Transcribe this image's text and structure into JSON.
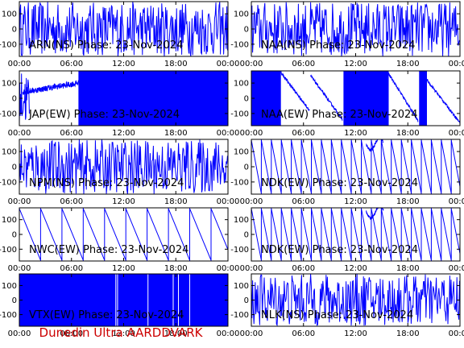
{
  "footer": {
    "text": "Dunedin Ultra AARDDVARK",
    "color": "#cc0000"
  },
  "colors": {
    "trace": "#0000ff",
    "axes": "#000000",
    "background": "#ffffff"
  },
  "chart_data": [
    {
      "type": "line",
      "title": "ARN(NS) Phase: 23-Nov-2024",
      "y_ticks": [
        "100",
        "0",
        "-100"
      ],
      "ylim": [
        -180,
        180
      ],
      "x_ticks": [
        "00:00",
        "06:00",
        "12:00",
        "18:00",
        "00:00"
      ],
      "xlim": [
        0,
        24
      ],
      "x_unit": "hours UT",
      "pattern": "noise",
      "series": [
        {
          "x": [
            0,
            24
          ],
          "y": [
            180,
            -180
          ]
        }
      ]
    },
    {
      "type": "line",
      "title": "NAA(NS) Phase: 23-Nov-2024",
      "y_ticks": [
        "100",
        "0",
        "-100"
      ],
      "ylim": [
        -180,
        180
      ],
      "x_ticks": [
        "00:00",
        "06:00",
        "12:00",
        "18:00",
        "00:00"
      ],
      "xlim": [
        0,
        24
      ],
      "x_unit": "hours UT",
      "pattern": "noise",
      "series": [
        {
          "x": [
            0,
            24
          ],
          "y": [
            180,
            -180
          ]
        }
      ]
    },
    {
      "type": "line",
      "title": "JAP(EW) Phase: 23-Nov-2024",
      "y_ticks": [
        "100",
        "0",
        "-100"
      ],
      "ylim": [
        -180,
        180
      ],
      "x_ticks": [
        "00:00",
        "06:00",
        "12:00",
        "18:00",
        "00:00"
      ],
      "xlim": [
        0,
        24
      ],
      "x_unit": "hours UT",
      "pattern": "jap",
      "series": [
        {
          "x": [
            0.5,
            6.8
          ],
          "y": [
            60,
            120
          ]
        }
      ]
    },
    {
      "type": "line",
      "title": "NAA(EW) Phase: 23-Nov-2024",
      "y_ticks": [
        "100",
        "0",
        "-100"
      ],
      "ylim": [
        -180,
        180
      ],
      "x_ticks": [
        "00:00",
        "06:00",
        "12:00",
        "18:00",
        "00:00"
      ],
      "xlim": [
        0,
        24
      ],
      "x_unit": "hours UT",
      "pattern": "naaew",
      "series": [
        {
          "x": [
            6.8,
            10.5
          ],
          "y": [
            160,
            -130
          ]
        }
      ]
    },
    {
      "type": "line",
      "title": "NPM(NS) Phase: 23-Nov-2024",
      "y_ticks": [
        "100",
        "0",
        "-100"
      ],
      "ylim": [
        -180,
        180
      ],
      "x_ticks": [
        "00:00",
        "06:00",
        "12:00",
        "18:00",
        "00:00"
      ],
      "xlim": [
        0,
        24
      ],
      "x_unit": "hours UT",
      "pattern": "noise",
      "series": [
        {
          "x": [
            0,
            24
          ],
          "y": [
            180,
            -180
          ]
        }
      ]
    },
    {
      "type": "line",
      "title": "NDK(EW) Phase: 23-Nov-2024",
      "y_ticks": [
        "100",
        "0",
        "-100"
      ],
      "ylim": [
        -180,
        180
      ],
      "x_ticks": [
        "00:00",
        "06:00",
        "12:00",
        "18:00",
        "00:00"
      ],
      "xlim": [
        0,
        24
      ],
      "x_unit": "hours UT",
      "pattern": "saw",
      "series": [
        {
          "x": [
            0,
            24
          ],
          "y": [
            180,
            -180
          ]
        }
      ]
    },
    {
      "type": "line",
      "title": "NWC(EW) Phase: 23-Nov-2024",
      "y_ticks": [
        "100",
        "0",
        "-100"
      ],
      "ylim": [
        -180,
        180
      ],
      "x_ticks": [
        "00:00",
        "06:00",
        "12:00",
        "18:00",
        "00:00"
      ],
      "xlim": [
        0,
        24
      ],
      "x_unit": "hours UT",
      "pattern": "sawslow",
      "series": [
        {
          "x": [
            0,
            24
          ],
          "y": [
            180,
            -180
          ]
        }
      ]
    },
    {
      "type": "line",
      "title": "NDK(EW) Phase: 23-Nov-2024",
      "y_ticks": [
        "100",
        "0",
        "-100"
      ],
      "ylim": [
        -180,
        180
      ],
      "x_ticks": [
        "00:00",
        "06:00",
        "12:00",
        "18:00",
        "00:00"
      ],
      "xlim": [
        0,
        24
      ],
      "x_unit": "hours UT",
      "pattern": "saw",
      "series": [
        {
          "x": [
            0,
            24
          ],
          "y": [
            180,
            -180
          ]
        }
      ]
    },
    {
      "type": "line",
      "title": "VTX(EW) Phase: 23-Nov-2024",
      "y_ticks": [
        "100",
        "0",
        "-100"
      ],
      "ylim": [
        -180,
        180
      ],
      "x_ticks": [
        "00:00",
        "06:00",
        "12:00",
        "18:00",
        "00:00"
      ],
      "xlim": [
        0,
        24
      ],
      "x_unit": "hours UT",
      "pattern": "solid",
      "series": [
        {
          "x": [
            0,
            24
          ],
          "y": [
            180,
            -180
          ]
        }
      ]
    },
    {
      "type": "line",
      "title": "NLK(NS) Phase: 23-Nov-2024",
      "y_ticks": [
        "100",
        "0",
        "-100"
      ],
      "ylim": [
        -180,
        180
      ],
      "x_ticks": [
        "00:00",
        "06:00",
        "12:00",
        "18:00",
        "00:00"
      ],
      "xlim": [
        0,
        24
      ],
      "x_unit": "hours UT",
      "pattern": "noise",
      "series": [
        {
          "x": [
            0,
            24
          ],
          "y": [
            180,
            -180
          ]
        }
      ]
    }
  ]
}
